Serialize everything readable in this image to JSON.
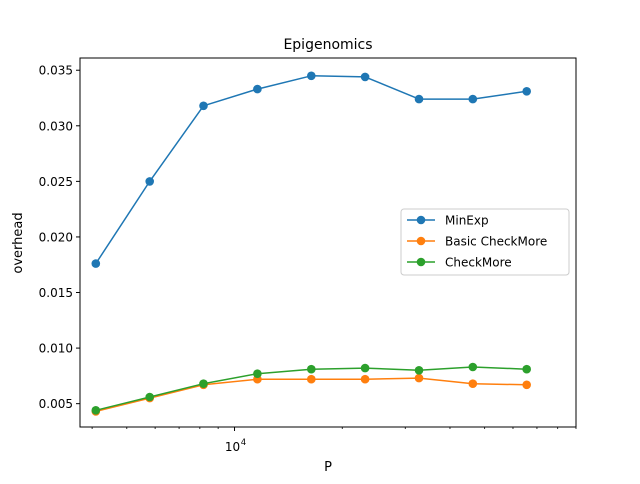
{
  "chart_data": {
    "type": "line",
    "title": "Epigenomics",
    "xlabel": "P",
    "ylabel": "overhead",
    "xscale": "log",
    "xlim": [
      3700,
      90000
    ],
    "ylim": [
      0.0029,
      0.0361
    ],
    "x": [
      4096,
      5793,
      8192,
      11585,
      16384,
      23170,
      32768,
      46341,
      65536
    ],
    "xticks": [
      {
        "value": 10000,
        "label": "10",
        "exponent": "4"
      }
    ],
    "yticks": [
      {
        "value": 0.005,
        "label": "0.005"
      },
      {
        "value": 0.01,
        "label": "0.010"
      },
      {
        "value": 0.015,
        "label": "0.015"
      },
      {
        "value": 0.02,
        "label": "0.020"
      },
      {
        "value": 0.025,
        "label": "0.025"
      },
      {
        "value": 0.03,
        "label": "0.030"
      },
      {
        "value": 0.035,
        "label": "0.035"
      }
    ],
    "grid": false,
    "legend_position": "center-right",
    "series": [
      {
        "name": "MinExp",
        "color": "#1f77b4",
        "marker": "circle",
        "values": [
          0.0176,
          0.025,
          0.0318,
          0.0333,
          0.0345,
          0.0344,
          0.0324,
          0.0324,
          0.0331
        ]
      },
      {
        "name": "Basic CheckMore",
        "color": "#ff7f0e",
        "marker": "circle",
        "values": [
          0.0043,
          0.0055,
          0.0067,
          0.0072,
          0.0072,
          0.0072,
          0.0073,
          0.0068,
          0.0067
        ]
      },
      {
        "name": "CheckMore",
        "color": "#2ca02c",
        "marker": "circle",
        "values": [
          0.0044,
          0.0056,
          0.0068,
          0.0077,
          0.0081,
          0.0082,
          0.008,
          0.0083,
          0.0081
        ]
      }
    ]
  }
}
